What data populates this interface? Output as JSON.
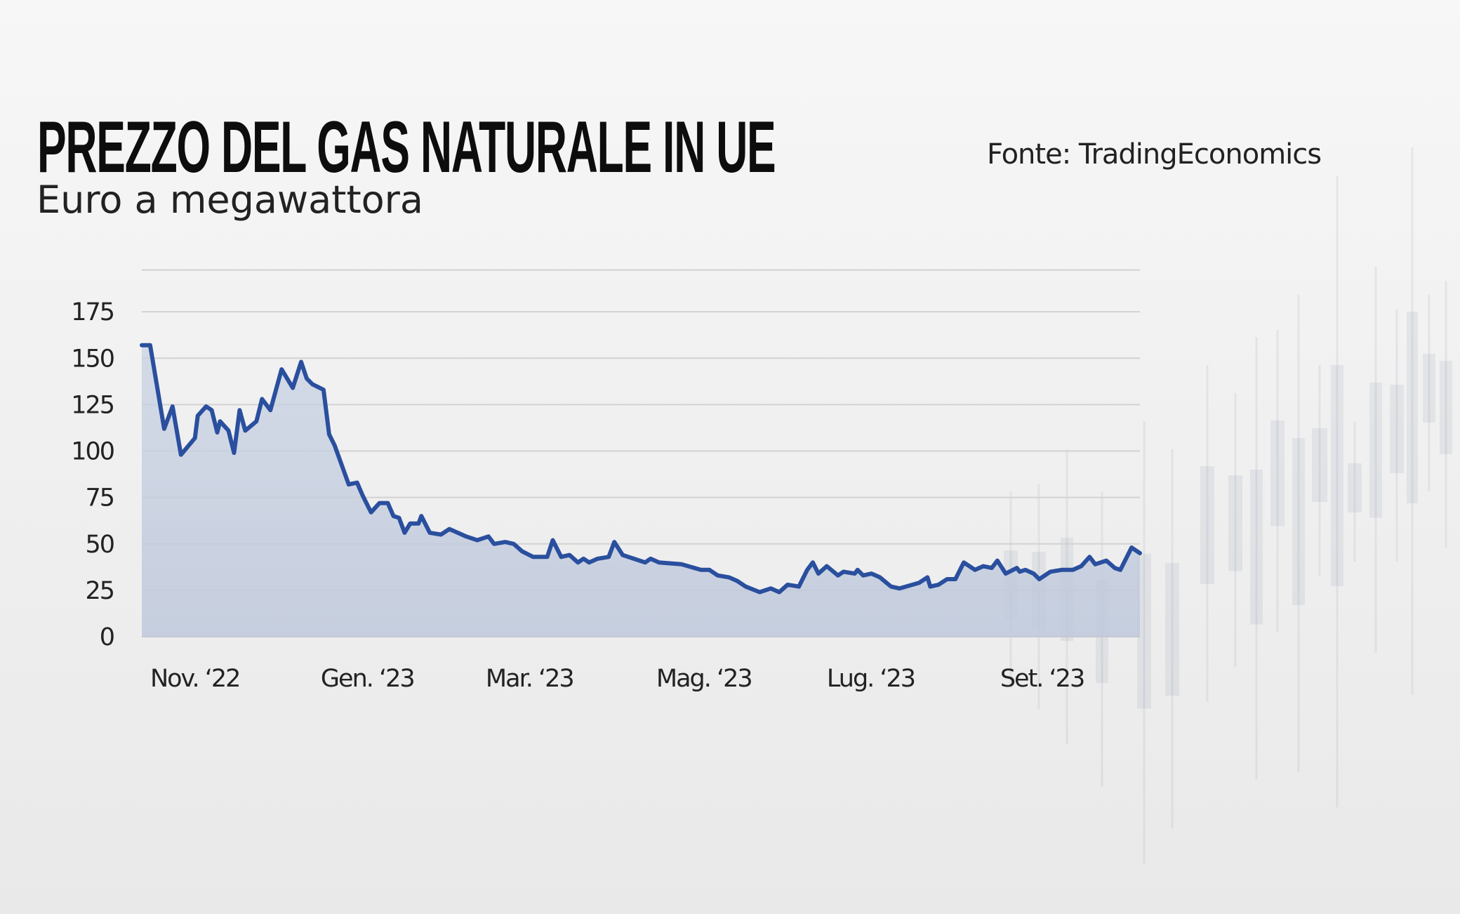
{
  "header": {
    "title": "PREZZO DEL GAS NATURALE IN UE",
    "subtitle": "Euro a megawattora",
    "source": "Fonte: TradingEconomics"
  },
  "chart_data": {
    "type": "area",
    "title": "PREZZO DEL GAS NATURALE IN UE",
    "subtitle": "Euro a megawattora",
    "xlabel": "",
    "ylabel": "",
    "ylim": [
      0,
      200
    ],
    "xlim": [
      "2022-10-29",
      "2023-10-21"
    ],
    "grid": true,
    "line_color": "#2a4f9e",
    "fill_color": "#c5cfe0",
    "y_ticks": [
      "0",
      "25",
      "50",
      "75",
      "100",
      "125",
      "150",
      "175"
    ],
    "x_ticks": [
      {
        "label": "Nov. ‘22",
        "date": "2022-11-01"
      },
      {
        "label": "Gen. ‘23",
        "date": "2023-01-01"
      },
      {
        "label": "Mar. ‘23",
        "date": "2023-03-01"
      },
      {
        "label": "Mag. ‘23",
        "date": "2023-05-01"
      },
      {
        "label": "Lug. ‘23",
        "date": "2023-07-01"
      },
      {
        "label": "Set. ‘23",
        "date": "2023-09-01"
      }
    ],
    "series": [
      {
        "x": [
          "2022-10-29",
          "2022-11-01",
          "2022-11-06",
          "2022-11-09",
          "2022-11-12",
          "2022-11-17",
          "2022-11-18",
          "2022-11-21",
          "2022-11-23",
          "2022-11-25",
          "2022-11-26",
          "2022-11-29",
          "2022-12-01",
          "2022-12-03",
          "2022-12-05",
          "2022-12-09",
          "2022-12-11",
          "2022-12-14",
          "2022-12-18",
          "2022-12-22",
          "2022-12-25",
          "2022-12-27",
          "2022-12-29",
          "2023-01-02",
          "2023-01-04",
          "2023-01-06",
          "2023-01-11",
          "2023-01-14",
          "2023-01-16",
          "2023-01-19",
          "2023-01-22",
          "2023-01-25",
          "2023-01-27",
          "2023-01-29",
          "2023-01-31",
          "2023-02-02",
          "2023-02-05",
          "2023-02-06",
          "2023-02-09",
          "2023-02-13",
          "2023-02-16",
          "2023-02-19",
          "2023-02-22",
          "2023-02-26",
          "2023-03-02",
          "2023-03-04",
          "2023-03-08",
          "2023-03-11",
          "2023-03-14",
          "2023-03-18",
          "2023-03-23",
          "2023-03-25",
          "2023-03-28",
          "2023-03-31",
          "2023-04-03",
          "2023-04-05",
          "2023-04-07",
          "2023-04-10",
          "2023-04-14",
          "2023-04-16",
          "2023-04-19",
          "2023-04-23",
          "2023-04-27",
          "2023-04-29",
          "2023-05-02",
          "2023-05-10",
          "2023-05-17",
          "2023-05-20",
          "2023-05-23",
          "2023-05-27",
          "2023-05-30",
          "2023-06-02",
          "2023-06-07",
          "2023-06-11",
          "2023-06-14",
          "2023-06-17",
          "2023-06-21",
          "2023-06-24",
          "2023-06-26",
          "2023-06-28",
          "2023-07-01",
          "2023-07-05",
          "2023-07-07",
          "2023-07-11",
          "2023-07-12",
          "2023-07-14",
          "2023-07-17",
          "2023-07-20",
          "2023-07-24",
          "2023-07-27",
          "2023-08-03",
          "2023-08-06",
          "2023-08-07",
          "2023-08-10",
          "2023-08-13",
          "2023-08-16",
          "2023-08-19",
          "2023-08-23",
          "2023-08-26",
          "2023-08-29",
          "2023-08-31",
          "2023-09-03",
          "2023-09-07",
          "2023-09-08",
          "2023-09-10",
          "2023-09-13",
          "2023-09-15",
          "2023-09-19",
          "2023-09-23",
          "2023-09-27",
          "2023-09-30",
          "2023-10-03",
          "2023-10-05",
          "2023-10-09",
          "2023-10-12",
          "2023-10-14",
          "2023-10-18",
          "2023-10-21"
        ],
        "y": [
          157,
          157,
          112,
          124,
          98,
          107,
          119,
          124,
          122,
          110,
          116,
          111,
          99,
          122,
          111,
          116,
          128,
          122,
          144,
          134,
          148,
          139,
          136,
          133,
          109,
          103,
          82,
          83,
          76,
          67,
          72,
          72,
          65,
          64,
          56,
          61,
          61,
          65,
          56,
          55,
          58,
          56,
          54,
          52,
          54,
          50,
          51,
          50,
          46,
          43,
          43,
          52,
          43,
          44,
          40,
          42,
          40,
          42,
          43,
          51,
          44,
          42,
          40,
          42,
          40,
          39,
          36,
          36,
          33,
          32,
          30,
          27,
          24,
          26,
          24,
          28,
          27,
          36,
          40,
          34,
          38,
          33,
          35,
          34,
          36,
          33,
          34,
          32,
          27,
          26,
          29,
          32,
          27,
          28,
          31,
          31,
          40,
          36,
          38,
          37,
          41,
          34,
          37,
          35,
          36,
          34,
          31,
          35,
          36,
          36,
          38,
          43,
          39,
          41,
          37,
          36,
          48,
          45
        ]
      }
    ]
  }
}
